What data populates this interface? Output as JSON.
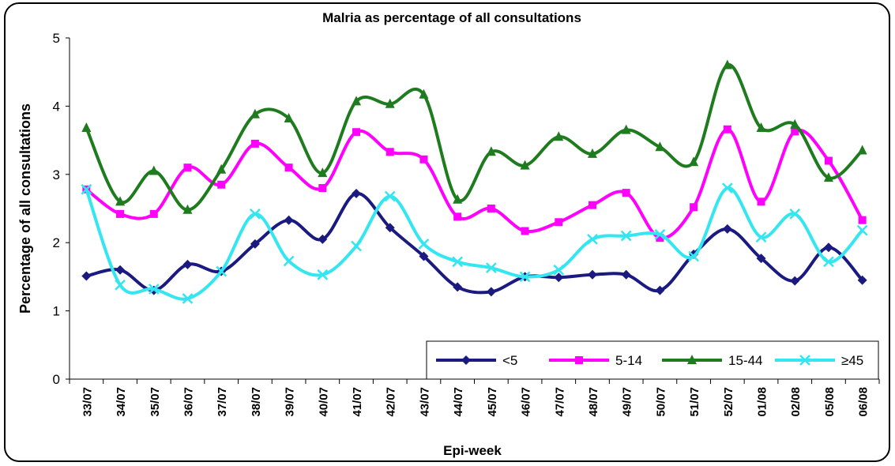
{
  "chart_data": {
    "type": "line",
    "title": "Malria as percentage of all consultations",
    "x_label": "Epi-week",
    "y_label": "Percentage of all consultations",
    "categories": [
      "33/07",
      "34/07",
      "35/07",
      "36/07",
      "37/07",
      "38/07",
      "39/07",
      "40/07",
      "41/07",
      "42/07",
      "43/07",
      "44/07",
      "45/07",
      "46/07",
      "47/07",
      "48/07",
      "49/07",
      "50/07",
      "51/07",
      "52/07",
      "01/08",
      "02/08",
      "05/08",
      "06/08"
    ],
    "series": [
      {
        "name": "<5",
        "color": "#1a1a80",
        "marker": "diamond",
        "values": [
          1.51,
          1.6,
          1.3,
          1.68,
          1.58,
          1.98,
          2.33,
          2.05,
          2.72,
          2.22,
          1.8,
          1.35,
          1.28,
          1.5,
          1.49,
          1.53,
          1.53,
          1.3,
          1.83,
          2.2,
          1.77,
          1.44,
          1.93,
          1.45
        ]
      },
      {
        "name": "5-14",
        "color": "#ff00ff",
        "marker": "square",
        "values": [
          2.78,
          2.42,
          2.42,
          3.1,
          2.85,
          3.45,
          3.1,
          2.8,
          3.62,
          3.33,
          3.22,
          2.38,
          2.5,
          2.17,
          2.3,
          2.55,
          2.73,
          2.07,
          2.52,
          3.66,
          2.6,
          3.63,
          3.2,
          2.33
        ]
      },
      {
        "name": "15-44",
        "color": "#1e7b1e",
        "marker": "triangle",
        "values": [
          3.68,
          2.6,
          3.05,
          2.48,
          3.07,
          3.88,
          3.82,
          3.02,
          4.07,
          4.03,
          4.17,
          2.63,
          3.33,
          3.13,
          3.55,
          3.3,
          3.65,
          3.4,
          3.18,
          4.6,
          3.68,
          3.73,
          2.95,
          3.35
        ]
      },
      {
        "name": "≥45",
        "color": "#33e6f0",
        "marker": "x",
        "values": [
          2.78,
          1.38,
          1.32,
          1.18,
          1.58,
          2.42,
          1.73,
          1.53,
          1.95,
          2.68,
          1.98,
          1.72,
          1.63,
          1.5,
          1.6,
          2.05,
          2.1,
          2.12,
          1.8,
          2.8,
          2.08,
          2.42,
          1.72,
          2.18
        ]
      }
    ],
    "ylim": [
      0,
      5
    ],
    "yticks": [
      0,
      1,
      2,
      3,
      4,
      5
    ],
    "smooth": true,
    "legend": "bottom-right"
  }
}
